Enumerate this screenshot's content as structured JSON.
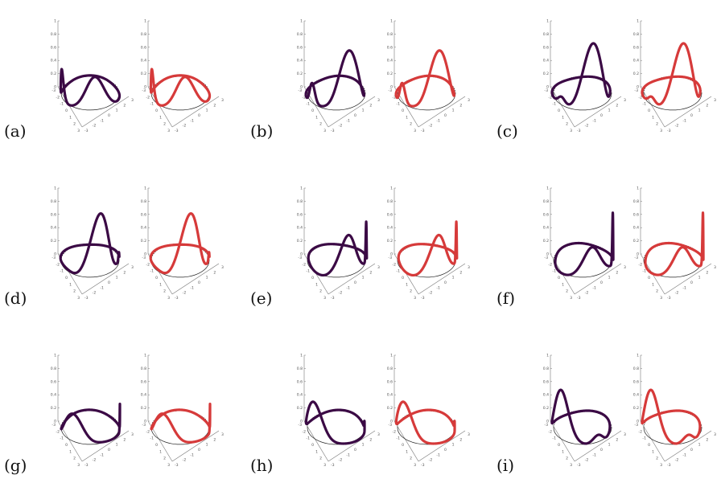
{
  "figure": {
    "panels": [
      {
        "label": "(a)",
        "loop": {
          "primary_angle": 100,
          "primary_height": 0.48,
          "secondary_angle": 22,
          "secondary_height": 0.46,
          "secondary_width": 0.14
        }
      },
      {
        "label": "(b)",
        "loop": {
          "primary_angle": 115,
          "primary_height": 0.88,
          "secondary_angle": 35,
          "secondary_height": 0.3,
          "secondary_width": 0.12
        }
      },
      {
        "label": "(c)",
        "loop": {
          "primary_angle": 110,
          "primary_height": 1.0,
          "secondary_angle": 40,
          "secondary_height": 0.1,
          "secondary_width": 0.16
        }
      },
      {
        "label": "(d)",
        "loop": {
          "primary_angle": 110,
          "primary_height": 0.95,
          "secondary_angle": 180,
          "secondary_height": 0.12,
          "secondary_width": 0.08
        }
      },
      {
        "label": "(e)",
        "loop": {
          "primary_angle": 115,
          "primary_height": 0.6,
          "secondary_angle": 175,
          "secondary_height": 0.6,
          "secondary_width": 0.06
        }
      },
      {
        "label": "(f)",
        "loop": {
          "primary_angle": 110,
          "primary_height": 0.42,
          "secondary_angle": 170,
          "secondary_height": 0.76,
          "secondary_width": 0.06
        }
      },
      {
        "label": "(g)",
        "loop": {
          "primary_angle": 55,
          "primary_height": 0.42,
          "secondary_angle": 170,
          "secondary_height": 0.4,
          "secondary_width": 0.06
        }
      },
      {
        "label": "(h)",
        "loop": {
          "primary_angle": 40,
          "primary_height": 0.55,
          "secondary_angle": 175,
          "secondary_height": 0.12,
          "secondary_width": 0.07
        }
      },
      {
        "label": "(i)",
        "loop": {
          "primary_angle": 40,
          "primary_height": 0.72,
          "secondary_angle": 120,
          "secondary_height": 0.12,
          "secondary_width": 0.18
        }
      }
    ],
    "z_ticks": [
      "0",
      "0.2",
      "0.4",
      "0.6",
      "0.8",
      "1"
    ],
    "base_ticks": [
      "-3",
      "-2",
      "-1",
      "0",
      "1",
      "2",
      "3"
    ],
    "colors": {
      "left_curve": "#3b0a45",
      "right_curve": "#d63a3a",
      "reference_circle": "#222222",
      "axes": "#777777"
    }
  }
}
